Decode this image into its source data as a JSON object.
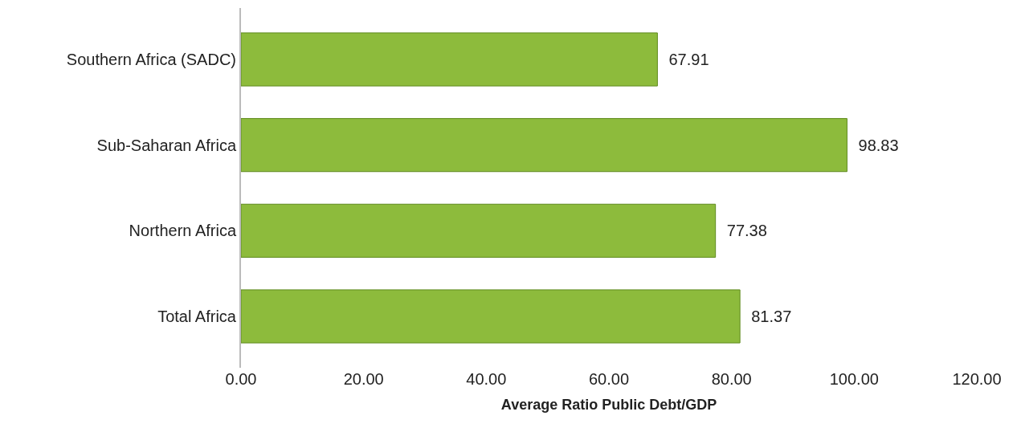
{
  "chart_data": {
    "type": "bar",
    "orientation": "horizontal",
    "xlabel": "Average Ratio Public Debt/GDP",
    "categories": [
      "Southern Africa (SADC)",
      "Sub-Saharan Africa",
      "Northern Africa",
      "Total Africa"
    ],
    "values": [
      67.91,
      98.83,
      77.38,
      81.37
    ],
    "color": "#8dbb3c",
    "xlim": [
      0,
      120
    ],
    "xticks": [
      {
        "value": 0,
        "label": "0.00"
      },
      {
        "value": 20,
        "label": "20.00"
      },
      {
        "value": 40,
        "label": "40.00"
      },
      {
        "value": 60,
        "label": "60.00"
      },
      {
        "value": 80,
        "label": "80.00"
      },
      {
        "value": 100,
        "label": "100.00"
      },
      {
        "value": 120,
        "label": "120.00"
      }
    ],
    "data_labels": true
  }
}
